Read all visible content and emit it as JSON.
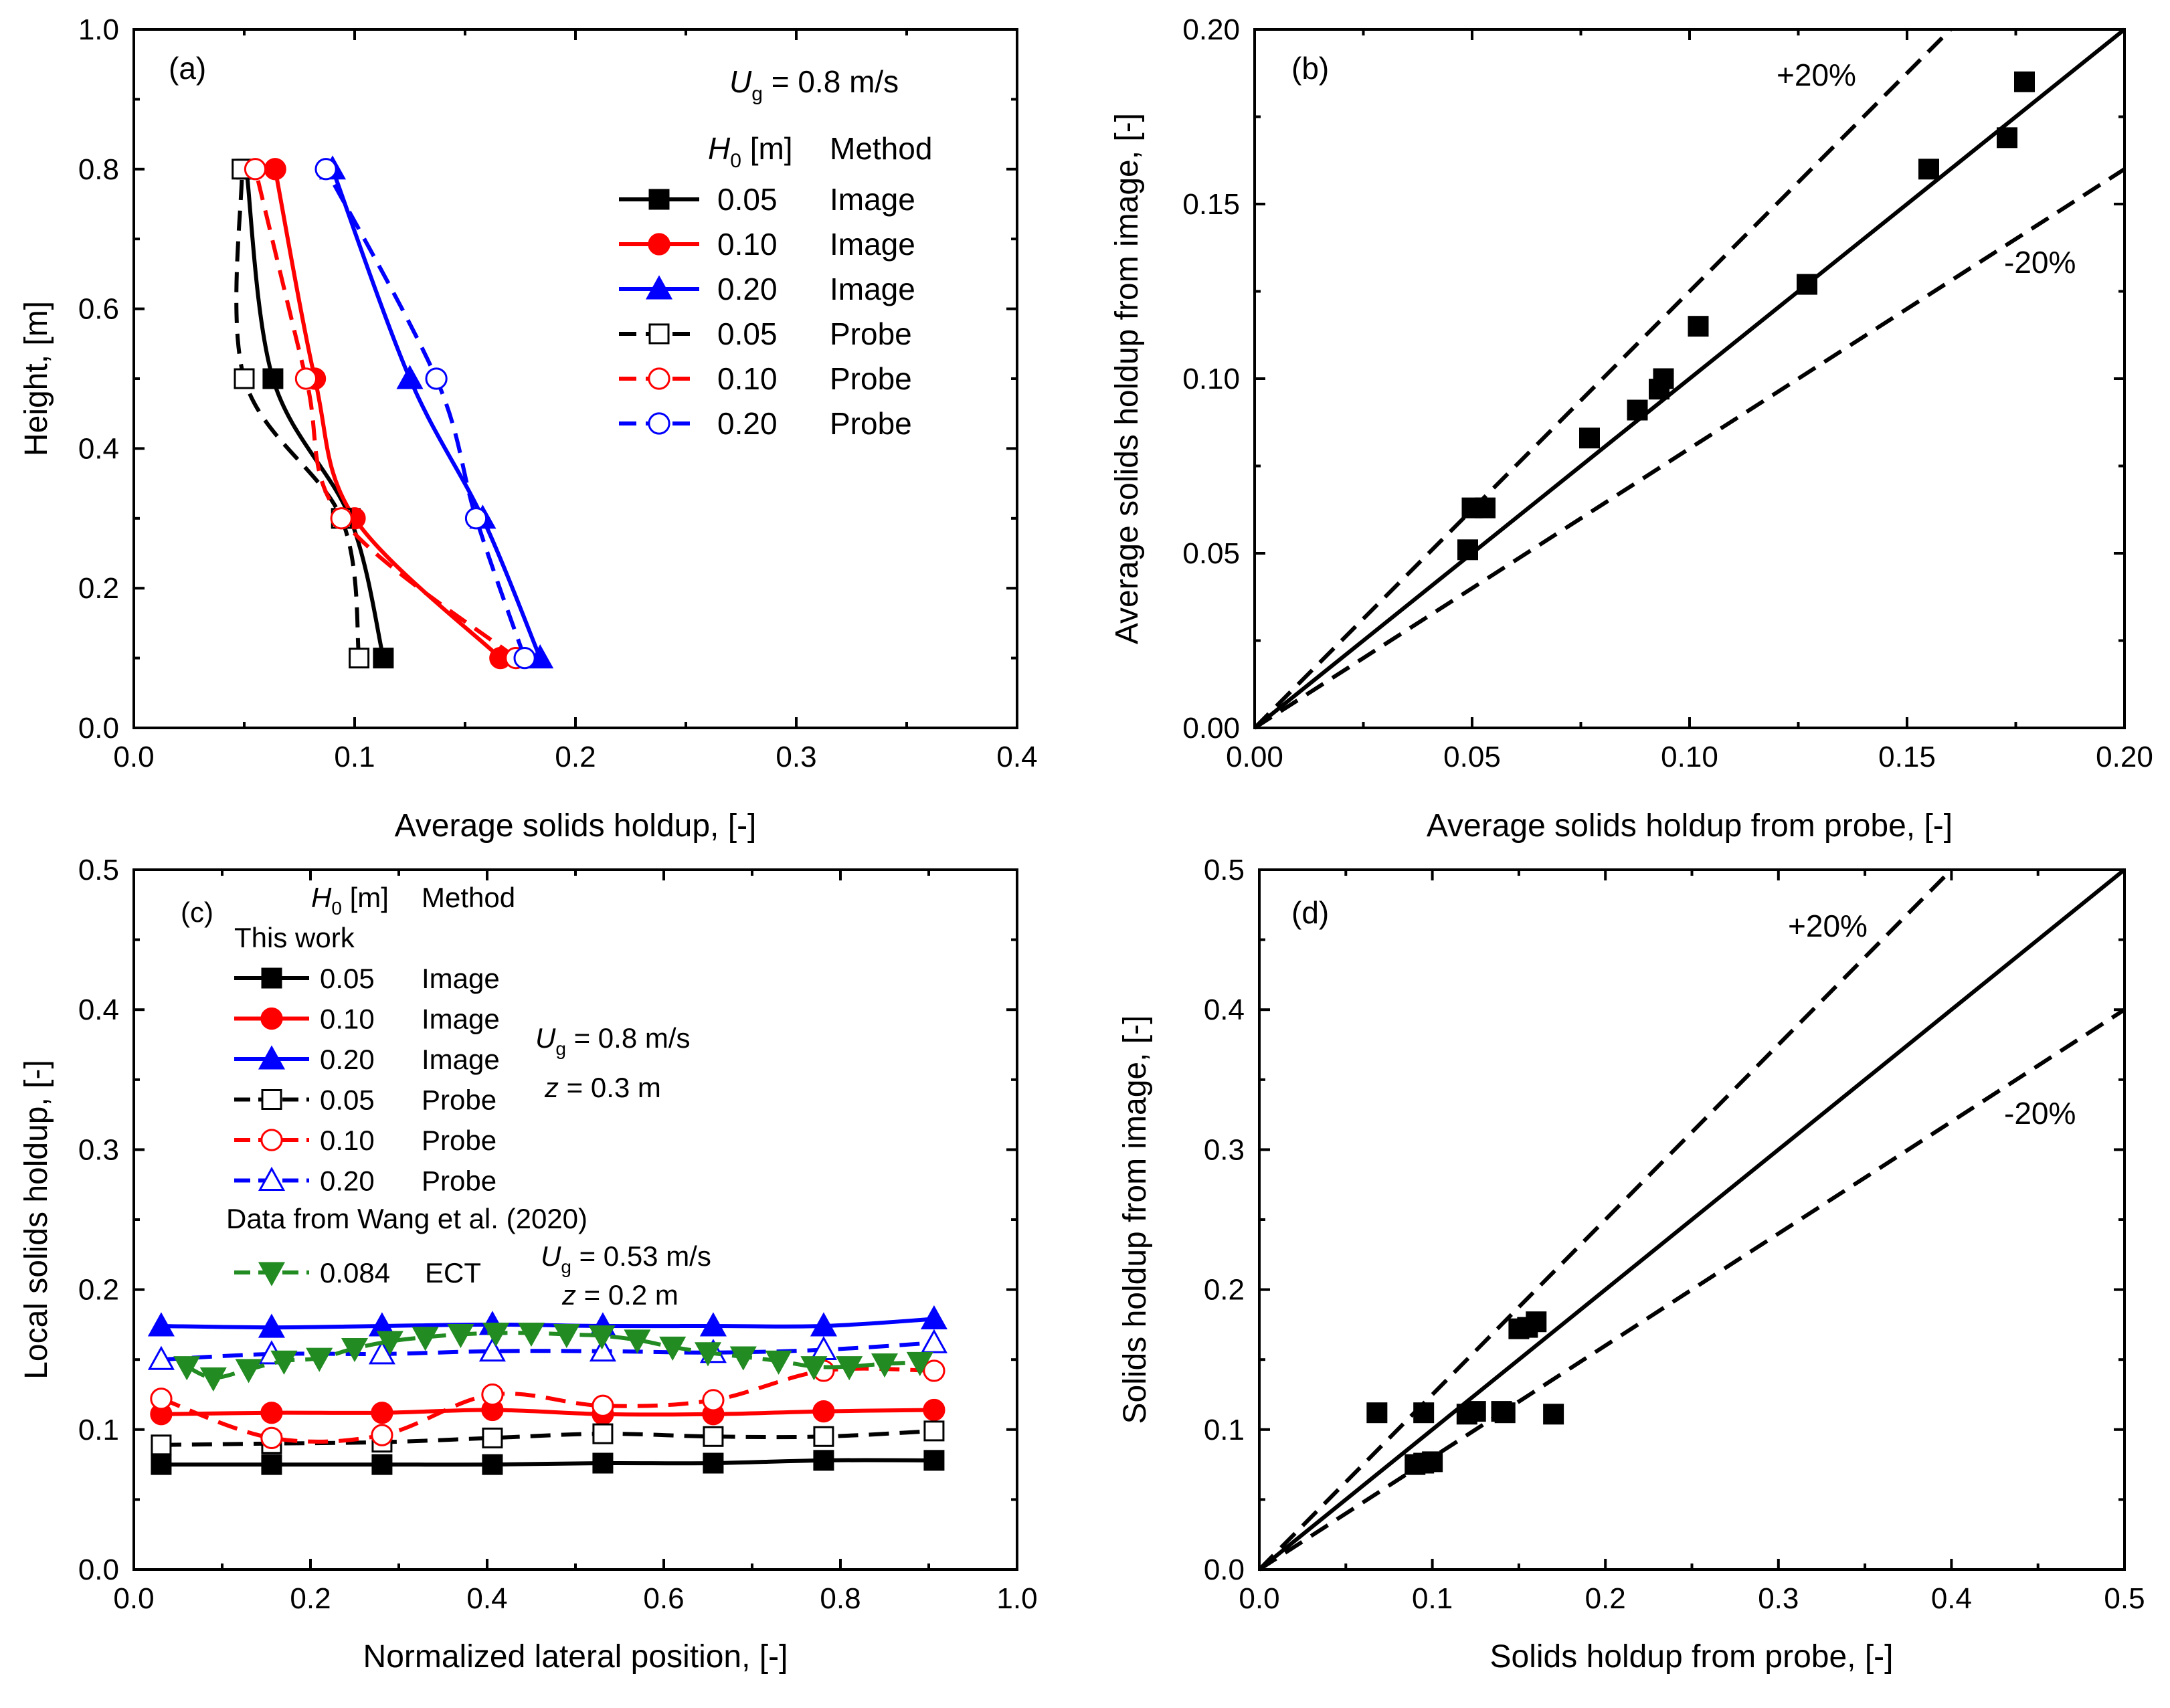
{
  "chart_data": [
    {
      "id": "a",
      "type": "line",
      "panel_label": "(a)",
      "xlabel": "Average solids holdup, [-]",
      "ylabel": "Height, [m]",
      "xlim": [
        0.0,
        0.4
      ],
      "ylim": [
        0.0,
        1.0
      ],
      "xticks": [
        "0.0",
        "0.1",
        "0.2",
        "0.3",
        "0.4"
      ],
      "yticks": [
        "0.0",
        "0.2",
        "0.4",
        "0.6",
        "0.8",
        "1.0"
      ],
      "annotation_prefix": "U",
      "annotation_sub": "g",
      "annotation_suffix": " = 0.8 m/s",
      "legend_head_h": "H",
      "legend_head_sub": "0",
      "legend_head_rest": " [m]",
      "legend_head_method": "Method",
      "series": [
        {
          "h0": "0.05",
          "method": "Image",
          "color": "#000000",
          "marker": "square",
          "filled": true,
          "dashed": false,
          "x": [
            0.113,
            0.098,
            0.063,
            0.051
          ],
          "y": [
            0.1,
            0.3,
            0.5,
            0.8
          ]
        },
        {
          "h0": "0.10",
          "method": "Image",
          "color": "#ff0000",
          "marker": "circle",
          "filled": true,
          "dashed": false,
          "x": [
            0.166,
            0.1,
            0.082,
            0.064
          ],
          "y": [
            0.1,
            0.3,
            0.5,
            0.8
          ]
        },
        {
          "h0": "0.20",
          "method": "Image",
          "color": "#0000ff",
          "marker": "triangle-up",
          "filled": true,
          "dashed": false,
          "x": [
            0.184,
            0.158,
            0.125,
            0.09
          ],
          "y": [
            0.1,
            0.3,
            0.5,
            0.8
          ]
        },
        {
          "h0": "0.05",
          "method": "Probe",
          "color": "#000000",
          "marker": "square",
          "filled": false,
          "dashed": true,
          "x": [
            0.102,
            0.094,
            0.05,
            0.049
          ],
          "y": [
            0.1,
            0.3,
            0.5,
            0.8
          ]
        },
        {
          "h0": "0.10",
          "method": "Probe",
          "color": "#ff0000",
          "marker": "circle",
          "filled": false,
          "dashed": true,
          "x": [
            0.173,
            0.094,
            0.078,
            0.055
          ],
          "y": [
            0.1,
            0.3,
            0.5,
            0.8
          ]
        },
        {
          "h0": "0.20",
          "method": "Probe",
          "color": "#0000ff",
          "marker": "circle",
          "filled": false,
          "dashed": true,
          "x": [
            0.177,
            0.155,
            0.137,
            0.087
          ],
          "y": [
            0.1,
            0.3,
            0.5,
            0.8
          ]
        }
      ]
    },
    {
      "id": "b",
      "type": "scatter",
      "panel_label": "(b)",
      "xlabel": "Average solids holdup from probe, [-]",
      "ylabel": "Average solids holdup from image, [-]",
      "xlim": [
        0.0,
        0.2
      ],
      "ylim": [
        0.0,
        0.2
      ],
      "xticks": [
        "0.00",
        "0.05",
        "0.10",
        "0.15",
        "0.20"
      ],
      "yticks": [
        "0.00",
        "0.05",
        "0.10",
        "0.15",
        "0.20"
      ],
      "plus_label": "+20%",
      "minus_label": "-20%",
      "x": [
        0.049,
        0.05,
        0.053,
        0.077,
        0.088,
        0.093,
        0.094,
        0.102,
        0.127,
        0.155,
        0.173,
        0.177
      ],
      "y": [
        0.051,
        0.063,
        0.063,
        0.083,
        0.091,
        0.097,
        0.1,
        0.115,
        0.127,
        0.16,
        0.169,
        0.185
      ],
      "reference_lines": [
        {
          "label": "1:1",
          "slope": 1.0
        },
        {
          "label": "+20%",
          "slope": 1.25
        },
        {
          "label": "-20%",
          "slope": 0.8
        }
      ]
    },
    {
      "id": "c",
      "type": "line",
      "panel_label": "(c)",
      "xlabel": "Normalized lateral position, [-]",
      "ylabel": "Local solids holdup, [-]",
      "xlim": [
        0.0,
        1.0
      ],
      "ylim": [
        0.0,
        0.5
      ],
      "xticks": [
        "0.0",
        "0.2",
        "0.4",
        "0.6",
        "0.8",
        "1.0"
      ],
      "yticks": [
        "0.0",
        "0.1",
        "0.2",
        "0.3",
        "0.4",
        "0.5"
      ],
      "legend_head_h": "H",
      "legend_head_sub": "0",
      "legend_head_rest": " [m]",
      "legend_head_method": "Method",
      "legend_group1": "This work",
      "legend_group2": "Data from Wang et al. (2020)",
      "ann1_prefix": "U",
      "ann1_sub": "g",
      "ann1_suffix": " = 0.8 m/s",
      "ann1_z": "z",
      "ann1_z_rest": " = 0.3 m",
      "ann2_prefix": "U",
      "ann2_sub": "g",
      "ann2_suffix": " = 0.53 m/s",
      "ann2_z": "z",
      "ann2_z_rest": " = 0.2 m",
      "series": [
        {
          "h0": "0.05",
          "method": "Image",
          "color": "#000000",
          "marker": "square",
          "filled": true,
          "dashed": false,
          "x": [
            0.031,
            0.156,
            0.281,
            0.406,
            0.531,
            0.656,
            0.781,
            0.906
          ],
          "y": [
            0.075,
            0.075,
            0.075,
            0.075,
            0.076,
            0.076,
            0.078,
            0.078
          ]
        },
        {
          "h0": "0.10",
          "method": "Image",
          "color": "#ff0000",
          "marker": "circle",
          "filled": true,
          "dashed": false,
          "x": [
            0.031,
            0.156,
            0.281,
            0.406,
            0.531,
            0.656,
            0.781,
            0.906
          ],
          "y": [
            0.111,
            0.112,
            0.112,
            0.114,
            0.111,
            0.111,
            0.113,
            0.114
          ]
        },
        {
          "h0": "0.20",
          "method": "Image",
          "color": "#0000ff",
          "marker": "triangle-up",
          "filled": true,
          "dashed": false,
          "x": [
            0.031,
            0.156,
            0.281,
            0.406,
            0.531,
            0.656,
            0.781,
            0.906
          ],
          "y": [
            0.174,
            0.173,
            0.174,
            0.175,
            0.174,
            0.174,
            0.174,
            0.179
          ]
        },
        {
          "h0": "0.05",
          "method": "Probe",
          "color": "#000000",
          "marker": "square",
          "filled": false,
          "dashed": true,
          "x": [
            0.031,
            0.156,
            0.281,
            0.406,
            0.531,
            0.656,
            0.781,
            0.906
          ],
          "y": [
            0.089,
            0.09,
            0.091,
            0.094,
            0.097,
            0.095,
            0.095,
            0.099
          ]
        },
        {
          "h0": "0.10",
          "method": "Probe",
          "color": "#ff0000",
          "marker": "circle",
          "filled": false,
          "dashed": true,
          "x": [
            0.031,
            0.156,
            0.281,
            0.406,
            0.531,
            0.656,
            0.781,
            0.906
          ],
          "y": [
            0.122,
            0.094,
            0.096,
            0.125,
            0.117,
            0.121,
            0.142,
            0.142
          ]
        },
        {
          "h0": "0.20",
          "method": "Probe",
          "color": "#0000ff",
          "marker": "triangle-up",
          "filled": false,
          "dashed": true,
          "x": [
            0.031,
            0.156,
            0.281,
            0.406,
            0.531,
            0.656,
            0.781,
            0.906
          ],
          "y": [
            0.15,
            0.154,
            0.154,
            0.156,
            0.156,
            0.155,
            0.157,
            0.162
          ]
        },
        {
          "h0": "0.084",
          "method": "ECT",
          "color": "#228B22",
          "marker": "triangle-down",
          "filled": true,
          "dashed": true,
          "group": 2,
          "x": [
            0.06,
            0.09,
            0.13,
            0.17,
            0.21,
            0.25,
            0.29,
            0.33,
            0.37,
            0.41,
            0.45,
            0.49,
            0.53,
            0.57,
            0.61,
            0.65,
            0.69,
            0.73,
            0.77,
            0.81,
            0.85,
            0.89
          ],
          "y": [
            0.145,
            0.137,
            0.143,
            0.149,
            0.151,
            0.158,
            0.163,
            0.166,
            0.168,
            0.169,
            0.169,
            0.168,
            0.167,
            0.164,
            0.159,
            0.155,
            0.152,
            0.149,
            0.145,
            0.145,
            0.147,
            0.148
          ]
        }
      ]
    },
    {
      "id": "d",
      "type": "scatter",
      "panel_label": "(d)",
      "xlabel": "Solids holdup from probe, [-]",
      "ylabel": "Solids holdup from image, [-]",
      "xlim": [
        0.0,
        0.5
      ],
      "ylim": [
        0.0,
        0.5
      ],
      "xticks": [
        "0.0",
        "0.1",
        "0.2",
        "0.3",
        "0.4",
        "0.5"
      ],
      "yticks": [
        "0.0",
        "0.1",
        "0.2",
        "0.3",
        "0.4",
        "0.5"
      ],
      "plus_label": "+20%",
      "minus_label": "-20%",
      "x": [
        0.068,
        0.09,
        0.095,
        0.095,
        0.1,
        0.12,
        0.125,
        0.14,
        0.142,
        0.15,
        0.155,
        0.16,
        0.17
      ],
      "y": [
        0.112,
        0.075,
        0.112,
        0.076,
        0.077,
        0.111,
        0.113,
        0.113,
        0.112,
        0.172,
        0.173,
        0.177,
        0.111
      ],
      "reference_lines": [
        {
          "label": "1:1",
          "slope": 1.0
        },
        {
          "label": "+20%",
          "slope": 1.25
        },
        {
          "label": "-20%",
          "slope": 0.8
        }
      ]
    }
  ]
}
